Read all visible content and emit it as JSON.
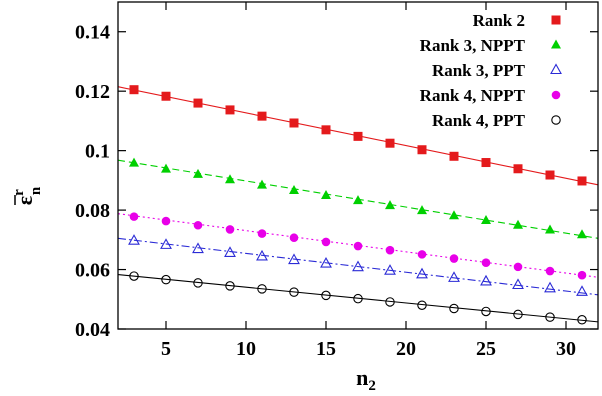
{
  "chart_data": {
    "type": "scatter",
    "xlabel": "n",
    "xlabel_sub": "2",
    "ylabel_base": "ε",
    "ylabel_sup": "r",
    "ylabel_sub": "n",
    "xlim": [
      2,
      32
    ],
    "ylim": [
      0.04,
      0.15
    ],
    "xticks": [
      5,
      10,
      15,
      20,
      25,
      30
    ],
    "yticks": [
      0.04,
      0.06,
      0.08,
      0.1,
      0.12,
      0.14
    ],
    "ytick_labels": [
      "0.04",
      "0.06",
      "0.08",
      "0.1",
      "0.12",
      "0.14"
    ],
    "grid": false,
    "legend_position": "top-right",
    "x": [
      3,
      5,
      7,
      9,
      11,
      13,
      15,
      17,
      19,
      21,
      23,
      25,
      27,
      29,
      31
    ],
    "series": [
      {
        "name": "Rank 2",
        "marker": "filled-square",
        "color": "#e41a1c",
        "line_style": "solid",
        "values": [
          0.1205,
          0.1183,
          0.116,
          0.1137,
          0.1116,
          0.1093,
          0.107,
          0.1048,
          0.1025,
          0.1003,
          0.0981,
          0.096,
          0.0939,
          0.0918,
          0.0898
        ],
        "fit": [
          0.1215,
          0.0885
        ]
      },
      {
        "name": "Rank 3, NPPT",
        "marker": "filled-triangle",
        "color": "#00d000",
        "line_style": "dashed",
        "values": [
          0.0958,
          0.0938,
          0.092,
          0.0902,
          0.0884,
          0.0866,
          0.0849,
          0.0832,
          0.0815,
          0.0798,
          0.0781,
          0.0765,
          0.0749,
          0.0733,
          0.0717
        ],
        "fit": [
          0.0968,
          0.0705
        ]
      },
      {
        "name": "Rank 3, PPT",
        "marker": "open-triangle",
        "color": "#2b2bd6",
        "line_style": "dash-dot",
        "values": [
          0.0697,
          0.0683,
          0.0669,
          0.0656,
          0.0644,
          0.0632,
          0.062,
          0.0608,
          0.0596,
          0.0584,
          0.0572,
          0.056,
          0.0548,
          0.0537,
          0.0525
        ],
        "fit": [
          0.0705,
          0.0515
        ]
      },
      {
        "name": "Rank 4, NPPT",
        "marker": "filled-circle",
        "color": "#e800e8",
        "line_style": "dotted",
        "values": [
          0.0778,
          0.0763,
          0.0749,
          0.0735,
          0.0721,
          0.0707,
          0.0693,
          0.0679,
          0.0665,
          0.0651,
          0.0637,
          0.0623,
          0.0609,
          0.0595,
          0.0581
        ],
        "fit": [
          0.0788,
          0.0574
        ]
      },
      {
        "name": "Rank 4, PPT",
        "marker": "open-circle",
        "color": "#000000",
        "line_style": "solid",
        "values": [
          0.0578,
          0.0566,
          0.0555,
          0.0545,
          0.0535,
          0.0524,
          0.0513,
          0.0502,
          0.0491,
          0.048,
          0.0469,
          0.0459,
          0.0449,
          0.044,
          0.0431
        ],
        "fit": [
          0.0583,
          0.0424
        ]
      }
    ]
  }
}
